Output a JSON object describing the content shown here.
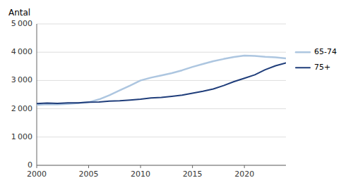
{
  "chart_data": {
    "type": "line",
    "ylabel": "Antal",
    "x": [
      2000,
      2001,
      2002,
      2003,
      2004,
      2005,
      2006,
      2007,
      2008,
      2009,
      2010,
      2011,
      2012,
      2013,
      2014,
      2015,
      2016,
      2017,
      2018,
      2019,
      2020,
      2021,
      2022,
      2023,
      2024
    ],
    "series": [
      {
        "name": "65-74",
        "color": "#adc6e0",
        "values": [
          2130,
          2160,
          2150,
          2170,
          2200,
          2230,
          2330,
          2480,
          2650,
          2820,
          3000,
          3100,
          3180,
          3260,
          3360,
          3480,
          3580,
          3680,
          3760,
          3830,
          3880,
          3870,
          3840,
          3820,
          3780
        ]
      },
      {
        "name": "75+",
        "color": "#1f3d7a",
        "values": [
          2180,
          2200,
          2190,
          2210,
          2210,
          2230,
          2240,
          2270,
          2280,
          2310,
          2340,
          2380,
          2400,
          2440,
          2480,
          2550,
          2620,
          2700,
          2820,
          2960,
          3080,
          3200,
          3380,
          3520,
          3620
        ]
      }
    ],
    "xlim": [
      2000,
      2024
    ],
    "ylim": [
      0,
      5000
    ],
    "xticks": [
      2000,
      2005,
      2010,
      2015,
      2020
    ],
    "yticks": [
      0,
      {
        "value": 1000,
        "label": "1 000"
      },
      {
        "value": 2000,
        "label": "2 000"
      },
      {
        "value": 3000,
        "label": "3 000"
      },
      {
        "value": 4000,
        "label": "4 000"
      },
      {
        "value": 5000,
        "label": "5 000"
      }
    ],
    "grid": true,
    "legend": "right"
  }
}
